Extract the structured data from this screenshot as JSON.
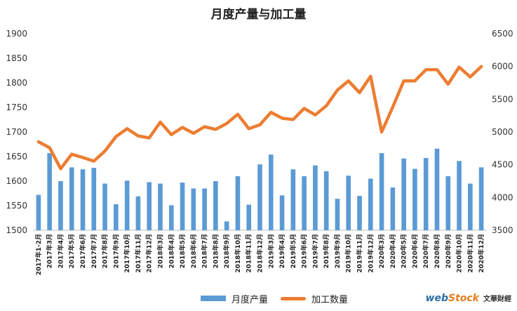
{
  "chart_data": {
    "type": "bar",
    "title": "月度产量与加工量",
    "categories": [
      "2017年1-2月",
      "2017年3月",
      "2017年4月",
      "2017年5月",
      "2017年6月",
      "2017年7月",
      "2017年8月",
      "2017年9月",
      "2017年10月",
      "2017年11月",
      "2017年12月",
      "2018年3月",
      "2018年4月",
      "2018年5月",
      "2018年6月",
      "2018年7月",
      "2018年8月",
      "2018年9月",
      "2018年10月",
      "2018年11月",
      "2018年12月",
      "2019年3月",
      "2019年4月",
      "2019年5月",
      "2019年6月",
      "2019年7月",
      "2019年8月",
      "2019年9月",
      "2019年10月",
      "2019年11月",
      "2019年12月",
      "2020年3月",
      "2020年4月",
      "2020年5月",
      "2020年6月",
      "2020年7月",
      "2020年8月",
      "2020年9月",
      "2020年10月",
      "2020年11月",
      "2020年12月"
    ],
    "series": [
      {
        "name": "月度产量",
        "type": "bar",
        "axis": "left",
        "color": "#5b9bd5",
        "values": [
          1572,
          1657,
          1600,
          1628,
          1624,
          1627,
          1595,
          1553,
          1601,
          1569,
          1598,
          1595,
          1551,
          1597,
          1585,
          1585,
          1600,
          1518,
          1610,
          1552,
          1634,
          1654,
          1571,
          1624,
          1610,
          1632,
          1620,
          1564,
          1611,
          1570,
          1605,
          1657,
          1587,
          1646,
          1625,
          1647,
          1666,
          1610,
          1641,
          1595,
          1628
        ]
      },
      {
        "name": "加工数量",
        "type": "line",
        "axis": "right",
        "color": "#ed7d31",
        "values": [
          4850,
          4760,
          4440,
          4660,
          4610,
          4555,
          4710,
          4930,
          5050,
          4940,
          4910,
          5150,
          4960,
          5070,
          4980,
          5080,
          5040,
          5130,
          5270,
          5050,
          5110,
          5300,
          5210,
          5190,
          5360,
          5260,
          5400,
          5640,
          5780,
          5600,
          5850,
          5000,
          5380,
          5780,
          5780,
          5950,
          5950,
          5730,
          5990,
          5840,
          6000
        ]
      }
    ],
    "y_left": {
      "min": 1500,
      "max": 1900,
      "ticks": [
        "1500",
        "1550",
        "1600",
        "1650",
        "1700",
        "1750",
        "1800",
        "1850",
        "1900"
      ]
    },
    "y_right": {
      "min": 3500,
      "max": 6500,
      "ticks": [
        "3500",
        "4000",
        "4500",
        "5000",
        "5500",
        "6000",
        "6500"
      ]
    },
    "legend": {
      "position": "bottom",
      "items": [
        "月度产量",
        "加工数量"
      ]
    },
    "grid": false
  },
  "watermark": {
    "brand_a": "web",
    "brand_b": "Stock",
    "sub": "文華財經"
  }
}
